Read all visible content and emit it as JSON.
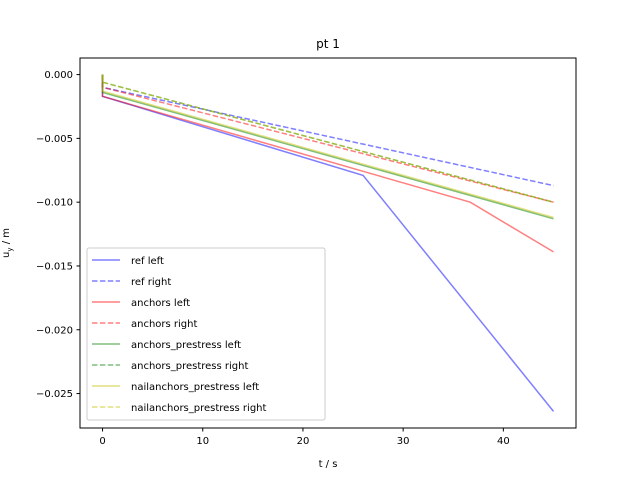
{
  "chart_data": {
    "type": "line",
    "title": "pt 1",
    "xlabel": "t / s",
    "ylabel": "u_y / m",
    "xlim": [
      -2.25,
      47.25
    ],
    "ylim": [
      -0.0277,
      0.0013
    ],
    "xticks": [
      0,
      10,
      20,
      30,
      40
    ],
    "xtick_labels": [
      "0",
      "10",
      "20",
      "30",
      "40"
    ],
    "yticks": [
      0.0,
      -0.005,
      -0.01,
      -0.015,
      -0.02,
      -0.025
    ],
    "ytick_labels": [
      "0.000",
      "−0.005",
      "−0.010",
      "−0.015",
      "−0.020",
      "−0.025"
    ],
    "grid": false,
    "legend_position": "lower left",
    "series": [
      {
        "name": "ref left",
        "color": "#0000ff",
        "alpha": 0.5,
        "dash": "solid",
        "x": [
          0,
          0,
          26,
          45
        ],
        "y": [
          0.0,
          -0.0017,
          -0.0079,
          -0.0264
        ]
      },
      {
        "name": "ref right",
        "color": "#0000ff",
        "alpha": 0.5,
        "dash": "dashed",
        "x": [
          0,
          0,
          45
        ],
        "y": [
          0.0,
          -0.001,
          -0.0087
        ]
      },
      {
        "name": "anchors left",
        "color": "#ff0000",
        "alpha": 0.5,
        "dash": "solid",
        "x": [
          0,
          0,
          36.7,
          45
        ],
        "y": [
          0.0,
          -0.0017,
          -0.01,
          -0.0139
        ]
      },
      {
        "name": "anchors right",
        "color": "#ff0000",
        "alpha": 0.5,
        "dash": "dashed",
        "x": [
          0,
          0,
          45
        ],
        "y": [
          0.0,
          -0.001,
          -0.01
        ]
      },
      {
        "name": "anchors_prestress left",
        "color": "#008000",
        "alpha": 0.5,
        "dash": "solid",
        "x": [
          0,
          0,
          45
        ],
        "y": [
          0.0,
          -0.0014,
          -0.0113
        ]
      },
      {
        "name": "anchors_prestress right",
        "color": "#008000",
        "alpha": 0.5,
        "dash": "dashed",
        "x": [
          0,
          0,
          45
        ],
        "y": [
          0.0,
          -0.0006,
          -0.01
        ]
      },
      {
        "name": "nailanchors_prestress left",
        "color": "#bfbf00",
        "alpha": 0.5,
        "dash": "solid",
        "x": [
          0,
          0,
          45
        ],
        "y": [
          0.0,
          -0.0013,
          -0.0112
        ]
      },
      {
        "name": "nailanchors_prestress right",
        "color": "#bfbf00",
        "alpha": 0.5,
        "dash": "dashed",
        "x": [
          0,
          0,
          45
        ],
        "y": [
          0.0,
          -0.0006,
          -0.01
        ]
      }
    ]
  },
  "labels": {
    "title": "pt 1",
    "xlabel": "t / s",
    "ylabel_main": "u",
    "ylabel_sub": "y",
    "ylabel_unit": " / m"
  }
}
